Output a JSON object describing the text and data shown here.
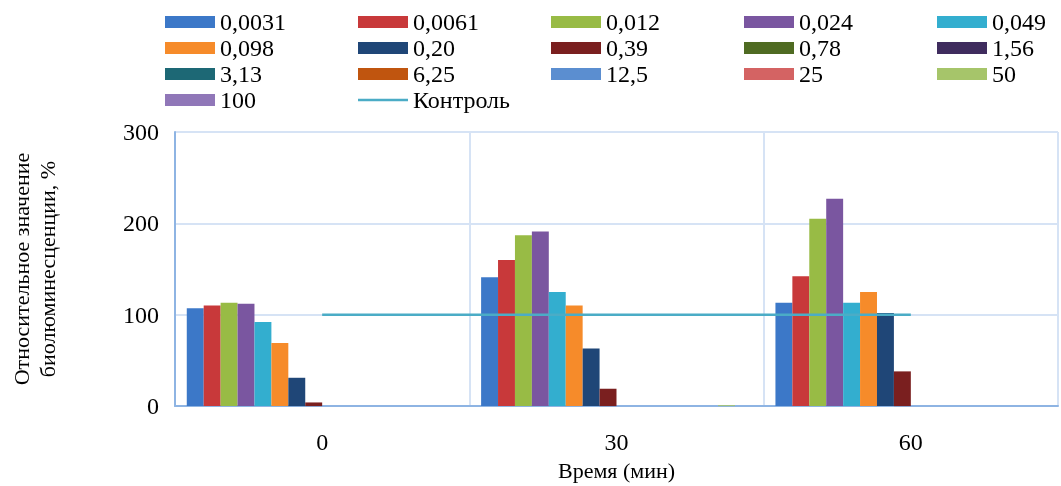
{
  "chart_data": {
    "type": "bar",
    "xlabel": "Время (мин)",
    "ylabel": "Относительное значение\nбиолюминесценции, %",
    "categories": [
      "0",
      "30",
      "60"
    ],
    "ylim": [
      0,
      300
    ],
    "yticks": [
      0,
      100,
      200,
      300
    ],
    "grid": true,
    "legend": "top",
    "series": [
      {
        "name": "0,0031",
        "color": "#3c78c8",
        "values": [
          107,
          141,
          113
        ]
      },
      {
        "name": "0,0061",
        "color": "#c8393a",
        "values": [
          110,
          160,
          142
        ]
      },
      {
        "name": "0,012",
        "color": "#98bb45",
        "values": [
          113,
          187,
          205
        ]
      },
      {
        "name": "0,024",
        "color": "#7a56a0",
        "values": [
          112,
          191,
          227
        ]
      },
      {
        "name": "0,049",
        "color": "#33aecf",
        "values": [
          92,
          125,
          113
        ]
      },
      {
        "name": "0,098",
        "color": "#f68b2a",
        "values": [
          69,
          110,
          125
        ]
      },
      {
        "name": "0,20",
        "color": "#1f4677",
        "values": [
          31,
          63,
          102
        ]
      },
      {
        "name": "0,39",
        "color": "#7a1f1f",
        "values": [
          4,
          19,
          38
        ]
      },
      {
        "name": "0,78",
        "color": "#4f6b22",
        "values": [
          0,
          0,
          0
        ]
      },
      {
        "name": "1,56",
        "color": "#3f2c5e",
        "values": [
          0,
          0,
          0
        ]
      },
      {
        "name": "3,13",
        "color": "#1d6875",
        "values": [
          0,
          0,
          0
        ]
      },
      {
        "name": "6,25",
        "color": "#c0550f",
        "values": [
          0,
          0,
          0
        ]
      },
      {
        "name": "12,5",
        "color": "#5b8ed0",
        "values": [
          0,
          0,
          0
        ]
      },
      {
        "name": "25",
        "color": "#d46363",
        "values": [
          0,
          0,
          0
        ]
      },
      {
        "name": "50",
        "color": "#a6c56a",
        "values": [
          0,
          1,
          0
        ]
      },
      {
        "name": "100",
        "color": "#9077b8",
        "values": [
          0,
          0,
          0
        ]
      },
      {
        "name": "Контроль",
        "type": "line",
        "color": "#4bacc6",
        "marker": "none",
        "values": [
          100,
          100,
          100
        ]
      }
    ]
  }
}
